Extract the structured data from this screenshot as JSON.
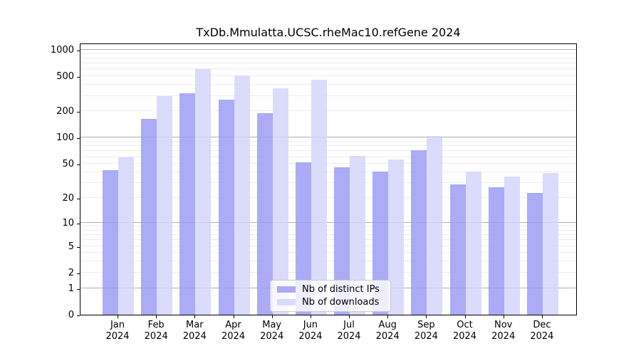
{
  "chart_data": {
    "type": "bar",
    "title": "TxDb.Mmulatta.UCSC.rheMac10.refGene 2024",
    "categories": [
      "Jan 2024",
      "Feb 2024",
      "Mar 2024",
      "Apr 2024",
      "May 2024",
      "Jun 2024",
      "Jul 2024",
      "Aug 2024",
      "Sep 2024",
      "Oct 2024",
      "Nov 2024",
      "Dec 2024"
    ],
    "series": [
      {
        "name": "Nb of distinct IPs",
        "color": "#9c9cf5",
        "values": [
          42,
          165,
          320,
          270,
          190,
          52,
          46,
          41,
          72,
          29,
          27,
          23
        ]
      },
      {
        "name": "Nb of downloads",
        "color": "#d5d5fa",
        "values": [
          60,
          300,
          600,
          515,
          365,
          460,
          62,
          56,
          105,
          41,
          36,
          39
        ]
      }
    ],
    "xlabel": "",
    "ylabel": "",
    "y_axis": {
      "scale": "log1p",
      "ticks": [
        0,
        1,
        2,
        5,
        10,
        20,
        50,
        100,
        200,
        500,
        1000
      ],
      "major_gridlines": [
        1,
        10,
        100,
        1000
      ],
      "ylim": [
        0,
        1200
      ]
    },
    "grid": true,
    "legend": {
      "position": "inside-bottom-center",
      "entries": [
        "Nb of distinct IPs",
        "Nb of downloads"
      ]
    },
    "colors": {
      "major_grid": "#b0b0b0",
      "minor_grid": "#ededed",
      "spine": "#000000",
      "legend_border": "#cccccc"
    }
  }
}
